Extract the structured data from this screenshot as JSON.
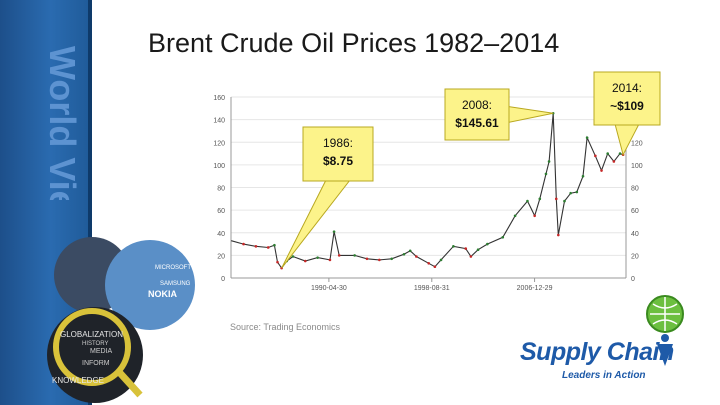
{
  "sidebar": {
    "text": "World View"
  },
  "title": "Brent Crude Oil Prices 1982–2014",
  "source": "Source: Trading Economics",
  "logo": {
    "name": "Supply Chain",
    "tagline": "Leaders in Action"
  },
  "collage": {
    "words": [
      "GLOBALIZATION",
      "KNOWLEDGE",
      "MEDIA",
      "INFORM",
      "HISTORY",
      "NOKIA",
      "SAMSUNG",
      "MICROSOFT"
    ]
  },
  "callouts": [
    {
      "label": "1986:",
      "value": "$8.75",
      "x": "1986-07-01",
      "y": 8.75
    },
    {
      "label": "2008:",
      "value": "$145.61",
      "x": "2008-07-03",
      "y": 145.61
    },
    {
      "label": "2014:",
      "value": "~$109",
      "x": "2014-03-01",
      "y": 109
    }
  ],
  "colors": {
    "sidebar": "#2a6bb0",
    "callout_fill": "#fcf38a",
    "callout_border": "#b9a820",
    "up": "#2e7d32",
    "down": "#c62828"
  },
  "chart_data": {
    "type": "line",
    "title": "Brent Crude Oil Prices 1982–2014",
    "xlabel": "",
    "ylabel": "",
    "ylim": [
      0,
      160
    ],
    "yticks": [
      0,
      20,
      40,
      60,
      80,
      100,
      120,
      140,
      160
    ],
    "xticks": [
      "1990-04-30",
      "1998-08-31",
      "2006-12-29"
    ],
    "grid": true,
    "series": [
      {
        "x": [
          "1982-06",
          "1983-06",
          "1984-06",
          "1985-06",
          "1985-12",
          "1986-03",
          "1986-07",
          "1986-12",
          "1987-06",
          "1988-06",
          "1989-06",
          "1990-06",
          "1990-10",
          "1991-03",
          "1992-06",
          "1993-06",
          "1994-06",
          "1995-06",
          "1996-06",
          "1996-12",
          "1997-06",
          "1998-06",
          "1998-12",
          "1999-06",
          "2000-06",
          "2001-06",
          "2001-11",
          "2002-06",
          "2003-03",
          "2004-06",
          "2005-06",
          "2006-06",
          "2007-01",
          "2007-06",
          "2007-12",
          "2008-03",
          "2008-07",
          "2008-10",
          "2008-12",
          "2009-06",
          "2009-12",
          "2010-06",
          "2010-12",
          "2011-04",
          "2011-12",
          "2012-06",
          "2012-12",
          "2013-06",
          "2013-12",
          "2014-03"
        ],
        "y": [
          33,
          30,
          28,
          27,
          29,
          14,
          8.75,
          15,
          19,
          15,
          18,
          16,
          41,
          20,
          20,
          17,
          16,
          17,
          21,
          24,
          19,
          13,
          10,
          16,
          28,
          26,
          19,
          25,
          30,
          36,
          55,
          68,
          55,
          70,
          92,
          103,
          145.61,
          70,
          38,
          68,
          75,
          76,
          90,
          124,
          108,
          95,
          110,
          103,
          110,
          109
        ]
      }
    ]
  }
}
